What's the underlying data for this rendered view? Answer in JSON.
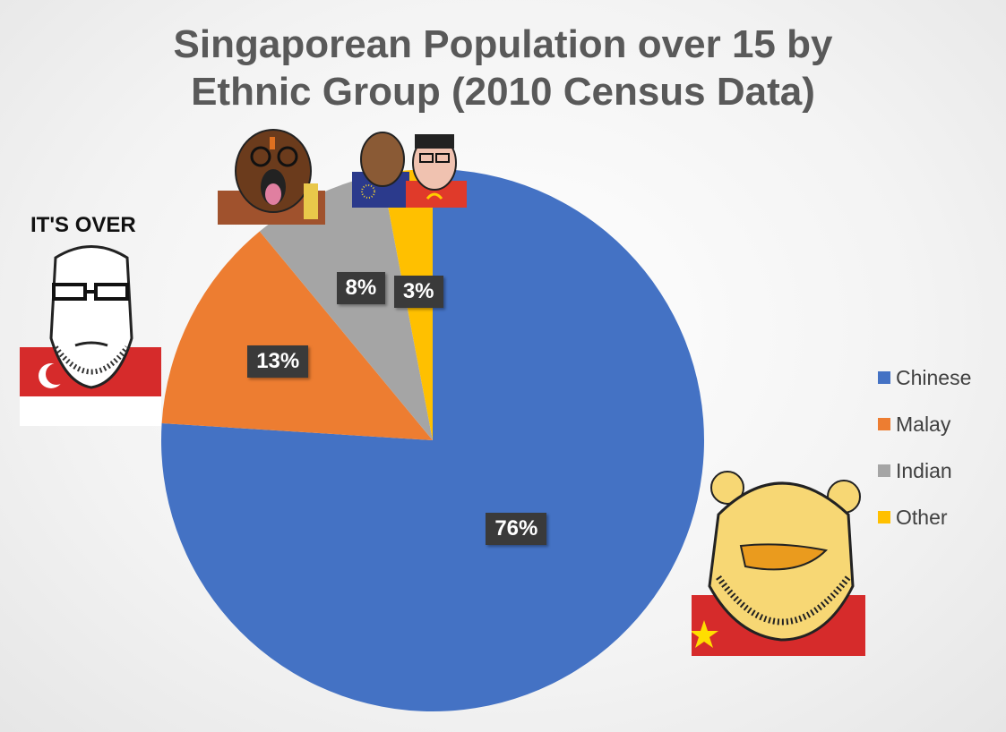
{
  "chart_data": {
    "type": "pie",
    "title_lines": [
      "Singaporean Population over 15 by",
      "Ethnic Group (2010 Census Data)"
    ],
    "categories": [
      "Chinese",
      "Malay",
      "Indian",
      "Other"
    ],
    "values": [
      76,
      13,
      8,
      3
    ],
    "labels": [
      "76%",
      "13%",
      "8%",
      "3%"
    ],
    "colors": [
      "#4472C4",
      "#ED7D31",
      "#A5A5A5",
      "#FFC000"
    ],
    "legend_position": "right"
  },
  "annotations": {
    "caption": "IT'S OVER"
  }
}
